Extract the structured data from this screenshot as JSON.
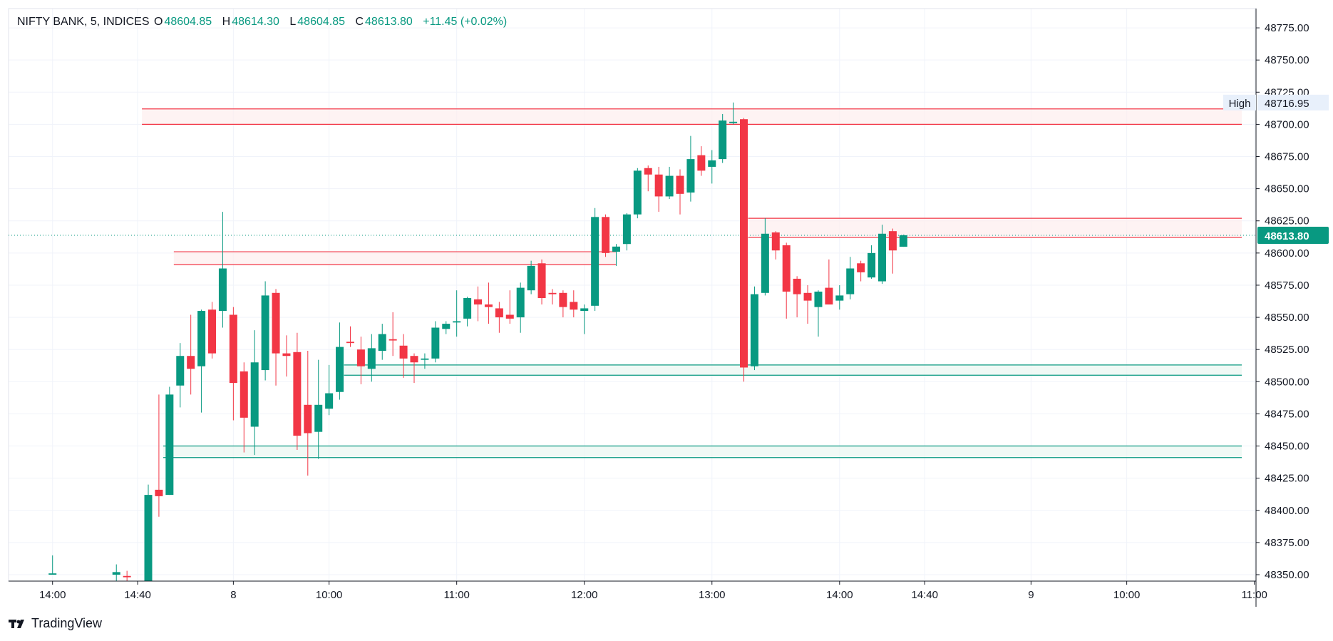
{
  "header": {
    "symbol": "NIFTY BANK, 5, INDICES",
    "open_label": "O",
    "open": "48604.85",
    "high_label": "H",
    "high": "48614.30",
    "low_label": "L",
    "low": "48604.85",
    "close_label": "C",
    "close": "48613.80",
    "change": "+11.45 (+0.02%)"
  },
  "footer": {
    "brand": "TradingView",
    "icon": "tradingview-logo-icon"
  },
  "colors": {
    "up": "#089981",
    "down": "#f23645",
    "grid": "#f0f3fa",
    "axis": "#131722",
    "zone_red_fill": "#fdeeee",
    "zone_green_fill": "#eaf6f1"
  },
  "chart_data": {
    "type": "candlestick",
    "ylim": [
      48345,
      48790
    ],
    "y_ticks": [
      "48350.00",
      "48375.00",
      "48400.00",
      "48425.00",
      "48450.00",
      "48475.00",
      "48500.00",
      "48525.00",
      "48550.00",
      "48575.00",
      "48600.00",
      "48625.00",
      "48650.00",
      "48675.00",
      "48700.00",
      "48725.00",
      "48750.00",
      "48775.00"
    ],
    "x_ticks": [
      {
        "label": "14:00",
        "i": -9
      },
      {
        "label": "14:40",
        "i": -1
      },
      {
        "label": "8",
        "i": 8
      },
      {
        "label": "10:00",
        "i": 17
      },
      {
        "label": "11:00",
        "i": 29
      },
      {
        "label": "12:00",
        "i": 41
      },
      {
        "label": "13:00",
        "i": 53
      },
      {
        "label": "14:00",
        "i": 65
      },
      {
        "label": "14:40",
        "i": 73
      },
      {
        "label": "9",
        "i": 83
      },
      {
        "label": "10:00",
        "i": 92
      },
      {
        "label": "11:00",
        "i": 104
      }
    ],
    "candles": [
      {
        "i": -9,
        "o": 48350,
        "h": 48365,
        "l": 48350,
        "c": 48351
      },
      {
        "i": -3,
        "o": 48350,
        "h": 48358,
        "l": 48345,
        "c": 48352
      },
      {
        "i": -2,
        "o": 48349,
        "h": 48353,
        "l": 48345,
        "c": 48348
      },
      {
        "i": 0,
        "o": 48345,
        "h": 48420,
        "l": 48345,
        "c": 48412
      },
      {
        "i": 1,
        "o": 48416,
        "h": 48490,
        "l": 48395,
        "c": 48411
      },
      {
        "i": 2,
        "o": 48412,
        "h": 48496,
        "l": 48412,
        "c": 48490
      },
      {
        "i": 3,
        "o": 48497,
        "h": 48530,
        "l": 48480,
        "c": 48520
      },
      {
        "i": 4,
        "o": 48520,
        "h": 48552,
        "l": 48490,
        "c": 48510
      },
      {
        "i": 5,
        "o": 48512,
        "h": 48556,
        "l": 48476,
        "c": 48555
      },
      {
        "i": 6,
        "o": 48556,
        "h": 48562,
        "l": 48518,
        "c": 48522
      },
      {
        "i": 7,
        "o": 48555,
        "h": 48632,
        "l": 48542,
        "c": 48588
      },
      {
        "i": 8,
        "o": 48552,
        "h": 48558,
        "l": 48470,
        "c": 48499
      },
      {
        "i": 9,
        "o": 48508,
        "h": 48515,
        "l": 48445,
        "c": 48472
      },
      {
        "i": 10,
        "o": 48465,
        "h": 48540,
        "l": 48443,
        "c": 48515
      },
      {
        "i": 11,
        "o": 48509,
        "h": 48578,
        "l": 48501,
        "c": 48567
      },
      {
        "i": 12,
        "o": 48569,
        "h": 48572,
        "l": 48497,
        "c": 48522
      },
      {
        "i": 13,
        "o": 48522,
        "h": 48536,
        "l": 48504,
        "c": 48520
      },
      {
        "i": 14,
        "o": 48523,
        "h": 48538,
        "l": 48447,
        "c": 48458
      },
      {
        "i": 15,
        "o": 48482,
        "h": 48524,
        "l": 48427,
        "c": 48460
      },
      {
        "i": 16,
        "o": 48461,
        "h": 48517,
        "l": 48440,
        "c": 48482
      },
      {
        "i": 17,
        "o": 48479,
        "h": 48513,
        "l": 48474,
        "c": 48491
      },
      {
        "i": 18,
        "o": 48492,
        "h": 48546,
        "l": 48486,
        "c": 48527
      },
      {
        "i": 19,
        "o": 48531,
        "h": 48543,
        "l": 48527,
        "c": 48530
      },
      {
        "i": 20,
        "o": 48525,
        "h": 48535,
        "l": 48498,
        "c": 48512
      },
      {
        "i": 21,
        "o": 48510,
        "h": 48537,
        "l": 48500,
        "c": 48526
      },
      {
        "i": 22,
        "o": 48524,
        "h": 48545,
        "l": 48517,
        "c": 48537
      },
      {
        "i": 23,
        "o": 48533,
        "h": 48554,
        "l": 48520,
        "c": 48532
      },
      {
        "i": 24,
        "o": 48528,
        "h": 48537,
        "l": 48503,
        "c": 48518
      },
      {
        "i": 25,
        "o": 48520,
        "h": 48522,
        "l": 48499,
        "c": 48515
      },
      {
        "i": 26,
        "o": 48517,
        "h": 48522,
        "l": 48510,
        "c": 48518
      },
      {
        "i": 27,
        "o": 48518,
        "h": 48547,
        "l": 48515,
        "c": 48542
      },
      {
        "i": 28,
        "o": 48541,
        "h": 48547,
        "l": 48537,
        "c": 48545
      },
      {
        "i": 29,
        "o": 48546,
        "h": 48571,
        "l": 48535,
        "c": 48547
      },
      {
        "i": 30,
        "o": 48549,
        "h": 48566,
        "l": 48543,
        "c": 48565
      },
      {
        "i": 31,
        "o": 48564,
        "h": 48574,
        "l": 48547,
        "c": 48560
      },
      {
        "i": 32,
        "o": 48560,
        "h": 48577,
        "l": 48545,
        "c": 48558
      },
      {
        "i": 33,
        "o": 48557,
        "h": 48562,
        "l": 48538,
        "c": 48550
      },
      {
        "i": 34,
        "o": 48552,
        "h": 48571,
        "l": 48545,
        "c": 48549
      },
      {
        "i": 35,
        "o": 48550,
        "h": 48577,
        "l": 48538,
        "c": 48573
      },
      {
        "i": 36,
        "o": 48571,
        "h": 48594,
        "l": 48568,
        "c": 48590
      },
      {
        "i": 37,
        "o": 48592,
        "h": 48595,
        "l": 48560,
        "c": 48565
      },
      {
        "i": 38,
        "o": 48569,
        "h": 48572,
        "l": 48560,
        "c": 48568
      },
      {
        "i": 39,
        "o": 48569,
        "h": 48571,
        "l": 48550,
        "c": 48558
      },
      {
        "i": 40,
        "o": 48562,
        "h": 48571,
        "l": 48550,
        "c": 48556
      },
      {
        "i": 41,
        "o": 48555,
        "h": 48560,
        "l": 48537,
        "c": 48557
      },
      {
        "i": 42,
        "o": 48559,
        "h": 48635,
        "l": 48555,
        "c": 48628
      },
      {
        "i": 43,
        "o": 48628,
        "h": 48630,
        "l": 48597,
        "c": 48600
      },
      {
        "i": 44,
        "o": 48601,
        "h": 48607,
        "l": 48590,
        "c": 48605
      },
      {
        "i": 45,
        "o": 48607,
        "h": 48631,
        "l": 48602,
        "c": 48630
      },
      {
        "i": 46,
        "o": 48630,
        "h": 48666,
        "l": 48627,
        "c": 48664
      },
      {
        "i": 47,
        "o": 48666,
        "h": 48668,
        "l": 48648,
        "c": 48661
      },
      {
        "i": 48,
        "o": 48661,
        "h": 48667,
        "l": 48632,
        "c": 48644
      },
      {
        "i": 49,
        "o": 48644,
        "h": 48667,
        "l": 48642,
        "c": 48660
      },
      {
        "i": 50,
        "o": 48660,
        "h": 48665,
        "l": 48630,
        "c": 48646
      },
      {
        "i": 51,
        "o": 48647,
        "h": 48691,
        "l": 48640,
        "c": 48673
      },
      {
        "i": 52,
        "o": 48676,
        "h": 48683,
        "l": 48660,
        "c": 48664
      },
      {
        "i": 53,
        "o": 48667,
        "h": 48680,
        "l": 48654,
        "c": 48672
      },
      {
        "i": 54,
        "o": 48673,
        "h": 48708,
        "l": 48670,
        "c": 48703
      },
      {
        "i": 55,
        "o": 48701,
        "h": 48717,
        "l": 48700,
        "c": 48702
      },
      {
        "i": 56,
        "o": 48704,
        "h": 48705,
        "l": 48500,
        "c": 48511
      },
      {
        "i": 57,
        "o": 48512,
        "h": 48574,
        "l": 48509,
        "c": 48568
      },
      {
        "i": 58,
        "o": 48569,
        "h": 48627,
        "l": 48567,
        "c": 48615
      },
      {
        "i": 59,
        "o": 48616,
        "h": 48617,
        "l": 48595,
        "c": 48602
      },
      {
        "i": 60,
        "o": 48606,
        "h": 48608,
        "l": 48549,
        "c": 48570
      },
      {
        "i": 61,
        "o": 48580,
        "h": 48582,
        "l": 48550,
        "c": 48568
      },
      {
        "i": 62,
        "o": 48569,
        "h": 48575,
        "l": 48545,
        "c": 48563
      },
      {
        "i": 63,
        "o": 48558,
        "h": 48571,
        "l": 48535,
        "c": 48570
      },
      {
        "i": 64,
        "o": 48573,
        "h": 48595,
        "l": 48560,
        "c": 48560
      },
      {
        "i": 65,
        "o": 48563,
        "h": 48575,
        "l": 48556,
        "c": 48567
      },
      {
        "i": 66,
        "o": 48568,
        "h": 48597,
        "l": 48564,
        "c": 48588
      },
      {
        "i": 67,
        "o": 48592,
        "h": 48594,
        "l": 48578,
        "c": 48585
      },
      {
        "i": 68,
        "o": 48581,
        "h": 48606,
        "l": 48580,
        "c": 48600
      },
      {
        "i": 69,
        "o": 48578,
        "h": 48622,
        "l": 48576,
        "c": 48615
      },
      {
        "i": 70,
        "o": 48617,
        "h": 48619,
        "l": 48584,
        "c": 48602
      },
      {
        "i": 71,
        "o": 48604.85,
        "h": 48614.3,
        "l": 48604.85,
        "c": 48613.8
      }
    ],
    "zones": [
      {
        "type": "resistance",
        "top": 48712,
        "bottom": 48700,
        "i_start": -1,
        "i_end": 106
      },
      {
        "type": "resistance",
        "top": 48601,
        "bottom": 48591,
        "i_start": 2,
        "i_end": 44
      },
      {
        "type": "resistance",
        "top": 48627,
        "bottom": 48612,
        "i_start": 56,
        "i_end": 106
      },
      {
        "type": "support",
        "top": 48513,
        "bottom": 48505,
        "i_start": 18,
        "i_end": 106
      },
      {
        "type": "support",
        "top": 48450,
        "bottom": 48441,
        "i_start": 1,
        "i_end": 106
      }
    ],
    "last_price": "48613.80",
    "high_marker": {
      "label": "High",
      "value": "48716.95"
    }
  }
}
